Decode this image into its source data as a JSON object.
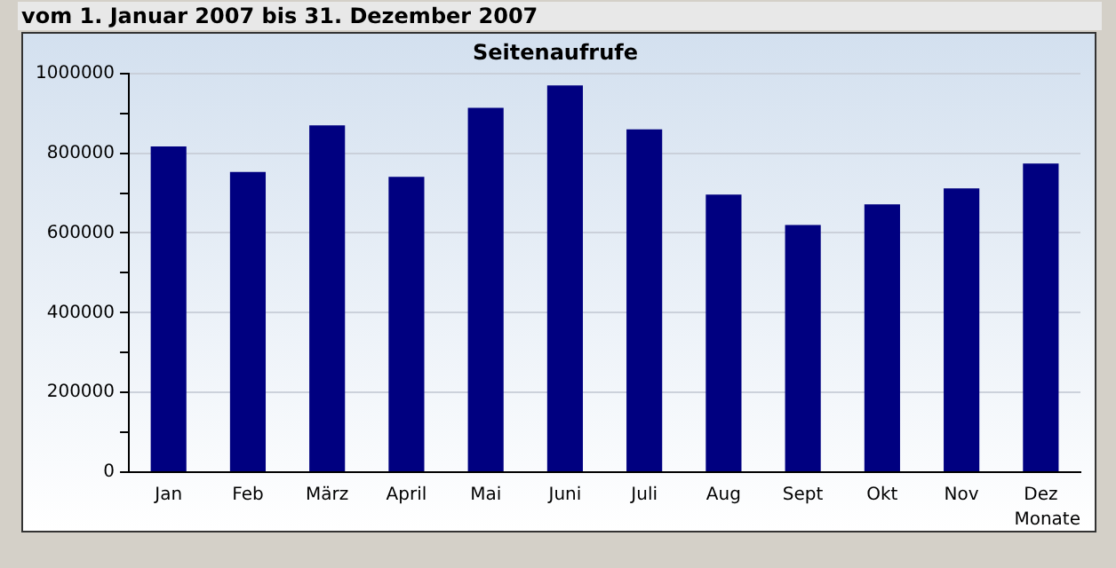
{
  "chart_data": {
    "type": "bar",
    "title": "Seitenaufrufe",
    "subtitle": "vom 1. Januar 2007  bis 31. Dezember 2007",
    "xlabel": "Monate",
    "categories": [
      "Jan",
      "Feb",
      "März",
      "April",
      "Mai",
      "Juni",
      "Juli",
      "Aug",
      "Sept",
      "Okt",
      "Nov",
      "Dez"
    ],
    "values": [
      817000,
      753000,
      870000,
      741000,
      914000,
      970000,
      860000,
      696000,
      620000,
      672000,
      712000,
      774000
    ],
    "color": "#000080",
    "ylim": [
      0,
      1000000
    ],
    "yticks": [
      0,
      {
        "value": 100000,
        "label": null
      },
      200000,
      {
        "value": 300000,
        "label": null
      },
      400000,
      {
        "value": 500000,
        "label": null
      },
      600000,
      {
        "value": 700000,
        "label": null
      },
      800000,
      {
        "value": 900000,
        "label": null
      },
      1000000
    ],
    "grid": "y"
  }
}
